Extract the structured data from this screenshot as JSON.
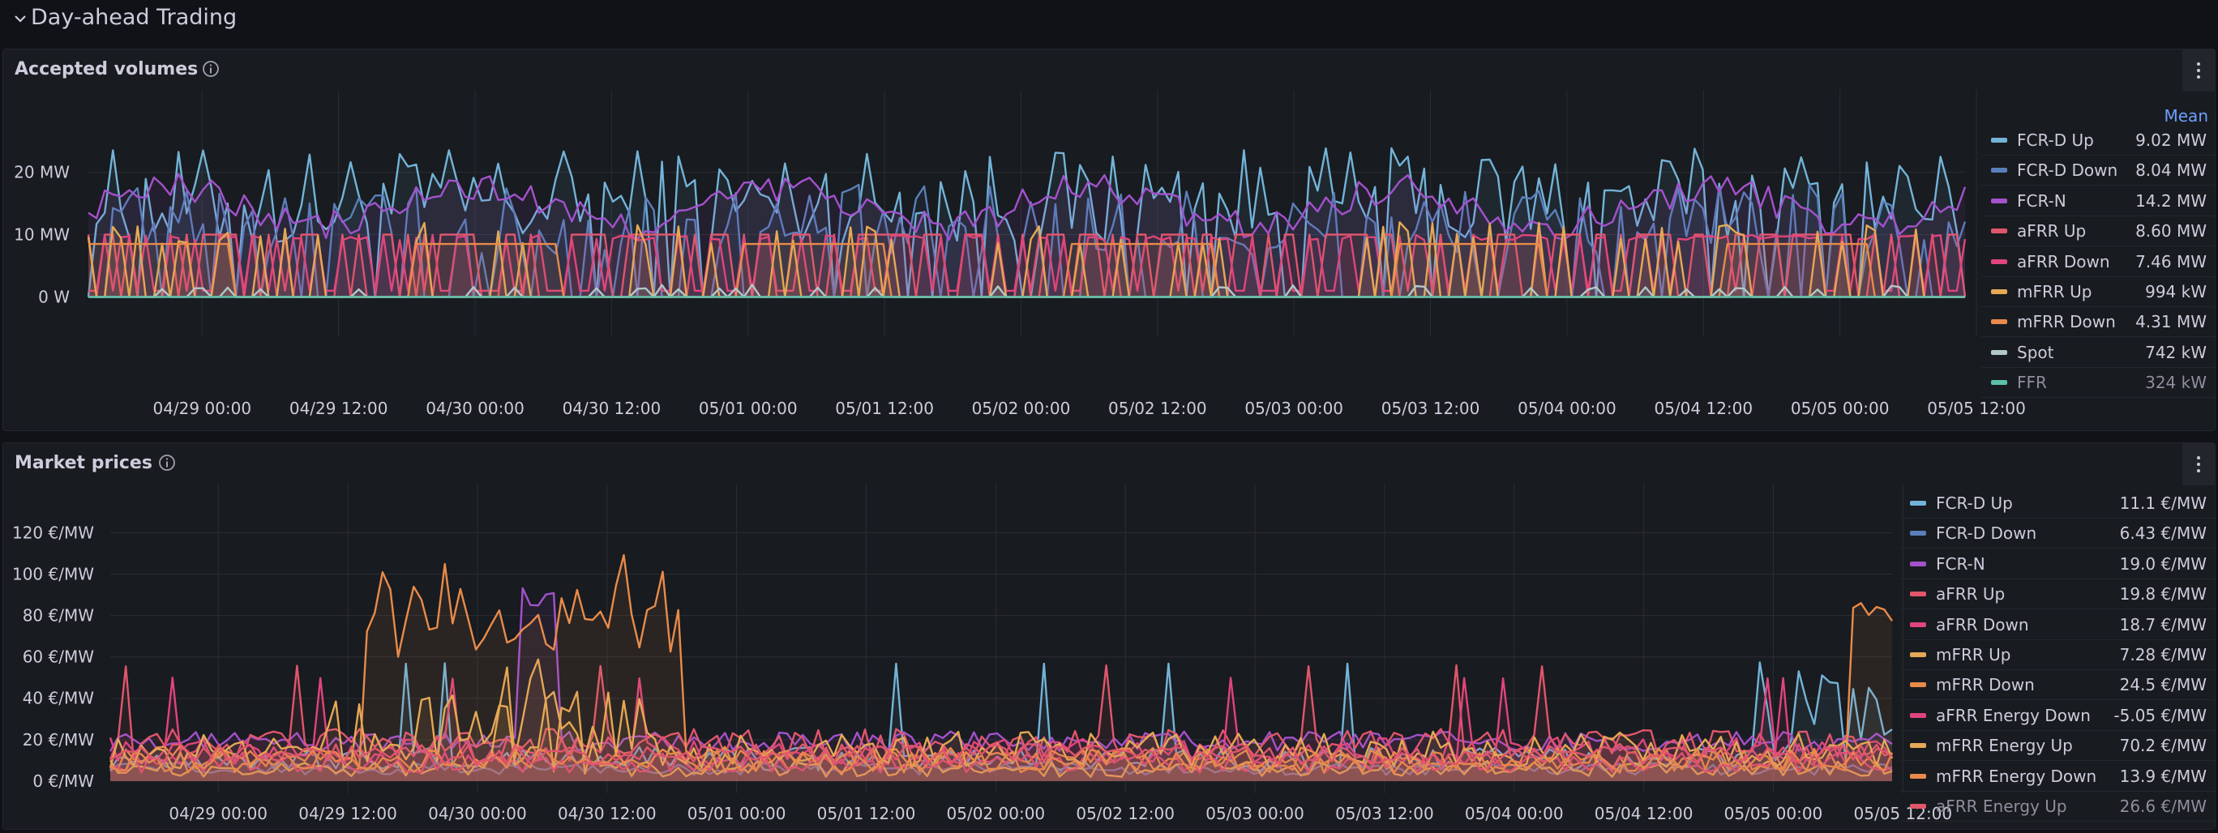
{
  "row": {
    "title": "Day-ahead Trading"
  },
  "panels": [
    {
      "title": "Accepted volumes",
      "legend_header": "Mean",
      "chart_data": {
        "type": "area",
        "title": "Accepted volumes",
        "y_ticks": [
          "0 W",
          "10 MW",
          "20 MW"
        ],
        "ylim": [
          -5,
          28
        ],
        "x_ticks": [
          "04/29 00:00",
          "04/29 12:00",
          "04/30 00:00",
          "04/30 12:00",
          "05/01 00:00",
          "05/01 12:00",
          "05/02 00:00",
          "05/02 12:00",
          "05/03 00:00",
          "05/03 12:00",
          "05/04 00:00",
          "05/04 12:00",
          "05/05 00:00",
          "05/05 12:00"
        ],
        "x_range_hours": [
          -10,
          155
        ],
        "grid": true,
        "legend_placement": "right",
        "series": [
          {
            "name": "FCR-D Up",
            "mean": "9.02 MW",
            "color": "#73b3d8"
          },
          {
            "name": "FCR-D Down",
            "mean": "8.04 MW",
            "color": "#5b7fb9"
          },
          {
            "name": "FCR-N",
            "mean": "14.2 MW",
            "color": "#a352cc"
          },
          {
            "name": "aFRR Up",
            "mean": "8.60 MW",
            "color": "#e0566c"
          },
          {
            "name": "aFRR Down",
            "mean": "7.46 MW",
            "color": "#e0457b"
          },
          {
            "name": "mFRR Up",
            "mean": "994 kW",
            "color": "#e5a955"
          },
          {
            "name": "mFRR Down",
            "mean": "4.31 MW",
            "color": "#e88b4a"
          },
          {
            "name": "Spot",
            "mean": "742 kW",
            "color": "#b2c8c8"
          },
          {
            "name": "FFR",
            "mean": "324 kW",
            "color": "#5cbfa9"
          }
        ]
      }
    },
    {
      "title": "Market prices",
      "chart_data": {
        "type": "area",
        "title": "Market prices",
        "y_ticks": [
          "0 €/MW",
          "20 €/MW",
          "40 €/MW",
          "60 €/MW",
          "80 €/MW",
          "100 €/MW",
          "120 €/MW"
        ],
        "ylim": [
          -2,
          128
        ],
        "x_ticks": [
          "04/29 00:00",
          "04/29 12:00",
          "04/30 00:00",
          "04/30 12:00",
          "05/01 00:00",
          "05/01 12:00",
          "05/02 00:00",
          "05/02 12:00",
          "05/03 00:00",
          "05/03 12:00",
          "05/04 00:00",
          "05/04 12:00",
          "05/05 00:00",
          "05/05 12:00"
        ],
        "x_range_hours": [
          -10,
          155
        ],
        "grid": true,
        "legend_placement": "right",
        "series": [
          {
            "name": "FCR-D Up",
            "mean": "11.1 €/MW",
            "color": "#73b3d8"
          },
          {
            "name": "FCR-D Down",
            "mean": "6.43 €/MW",
            "color": "#5b7fb9"
          },
          {
            "name": "FCR-N",
            "mean": "19.0 €/MW",
            "color": "#a352cc"
          },
          {
            "name": "aFRR Up",
            "mean": "19.8 €/MW",
            "color": "#e0566c"
          },
          {
            "name": "aFRR Down",
            "mean": "18.7 €/MW",
            "color": "#e0457b"
          },
          {
            "name": "mFRR Up",
            "mean": "7.28 €/MW",
            "color": "#e5a955"
          },
          {
            "name": "mFRR Down",
            "mean": "24.5 €/MW",
            "color": "#e88b4a"
          },
          {
            "name": "aFRR Energy Down",
            "mean": "-5.05 €/MW",
            "color": "#e0457b"
          },
          {
            "name": "mFRR Energy Up",
            "mean": "70.2 €/MW",
            "color": "#e5a955"
          },
          {
            "name": "mFRR Energy Down",
            "mean": "13.9 €/MW",
            "color": "#e88b4a"
          },
          {
            "name": "aFRR Energy Up",
            "mean": "26.6 €/MW",
            "color": "#e0566c"
          }
        ]
      }
    }
  ]
}
